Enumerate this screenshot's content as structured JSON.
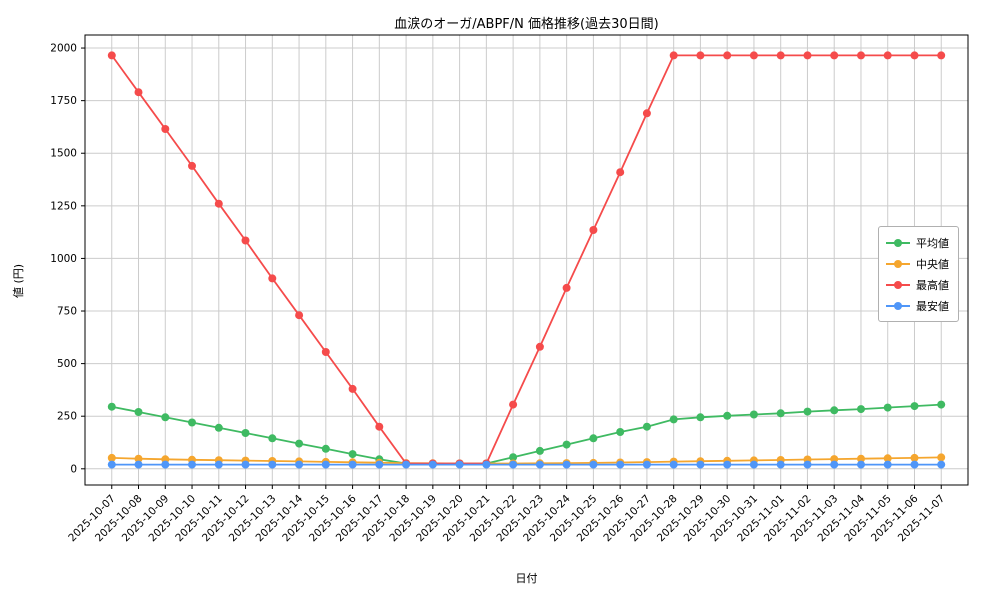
{
  "chart_data": {
    "type": "line",
    "title": "血涙のオーガ/ABPF/N 価格推移(過去30日間)",
    "xlabel": "日付",
    "ylabel": "値 (円)",
    "grid": true,
    "legend_position": "center-right",
    "yticks": [
      0,
      250,
      500,
      750,
      1000,
      1250,
      1500,
      1750,
      2000
    ],
    "ylim": [
      -77,
      2062
    ],
    "categories": [
      "2025-10-07",
      "2025-10-08",
      "2025-10-09",
      "2025-10-10",
      "2025-10-11",
      "2025-10-12",
      "2025-10-13",
      "2025-10-14",
      "2025-10-15",
      "2025-10-16",
      "2025-10-17",
      "2025-10-18",
      "2025-10-19",
      "2025-10-20",
      "2025-10-21",
      "2025-10-22",
      "2025-10-23",
      "2025-10-24",
      "2025-10-25",
      "2025-10-26",
      "2025-10-27",
      "2025-10-28",
      "2025-10-29",
      "2025-10-30",
      "2025-10-31",
      "2025-11-01",
      "2025-11-02",
      "2025-11-03",
      "2025-11-04",
      "2025-11-05",
      "2025-11-06",
      "2025-11-07"
    ],
    "series": [
      {
        "name": "平均値",
        "color": "#3fba62",
        "values": [
          295,
          270,
          245,
          220,
          195,
          170,
          145,
          120,
          95,
          70,
          45,
          25,
          25,
          25,
          25,
          55,
          85,
          115,
          145,
          175,
          200,
          235,
          245,
          252,
          258,
          264,
          272,
          278,
          284,
          291,
          298,
          305
        ]
      },
      {
        "name": "中央値",
        "color": "#f5a62e",
        "values": [
          52,
          48,
          45,
          43,
          41,
          39,
          37,
          35,
          33,
          31,
          29,
          27,
          26,
          25,
          25,
          25,
          26,
          27,
          28,
          30,
          32,
          34,
          36,
          38,
          40,
          42,
          44,
          46,
          48,
          50,
          52,
          54
        ]
      },
      {
        "name": "最高値",
        "color": "#f54b4b",
        "values": [
          1965,
          1790,
          1615,
          1440,
          1260,
          1085,
          905,
          730,
          555,
          380,
          200,
          25,
          25,
          25,
          25,
          305,
          580,
          860,
          1135,
          1410,
          1690,
          1965,
          1965,
          1965,
          1965,
          1965,
          1965,
          1965,
          1965,
          1965,
          1965,
          1965
        ]
      },
      {
        "name": "最安値",
        "color": "#4f96f8",
        "values": [
          20,
          20,
          20,
          20,
          20,
          20,
          20,
          20,
          20,
          20,
          20,
          20,
          20,
          20,
          20,
          20,
          20,
          20,
          20,
          20,
          20,
          20,
          20,
          20,
          20,
          20,
          20,
          20,
          20,
          20,
          20,
          20
        ]
      }
    ],
    "colors": {
      "grid": "#cccccc",
      "axis": "#000000",
      "legend_border": "#b0b0b0"
    }
  }
}
